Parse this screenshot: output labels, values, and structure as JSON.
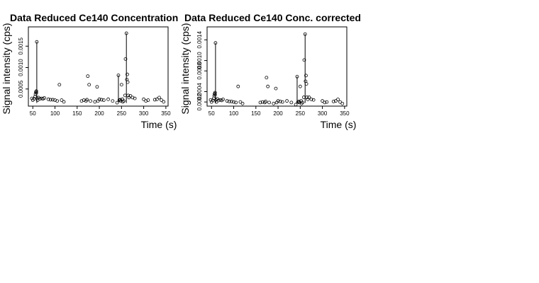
{
  "chart_data": [
    {
      "type": "scatter",
      "title": "Data Reduced Ce140 Concentration",
      "xlabel": "Time (s)",
      "ylabel": "Signal intensity (cps)",
      "xlim": [
        40,
        355
      ],
      "ylim": [
        0.0001,
        0.00195
      ],
      "x_ticks": [
        50,
        100,
        150,
        200,
        250,
        300,
        350
      ],
      "y_ticks": [
        0.0005,
        0.001,
        0.0015
      ],
      "y_tick_labels": [
        "0.0005",
        "0.0010",
        "0.0015"
      ],
      "grid": false,
      "points": [
        {
          "x": 48,
          "y": 0.00028
        },
        {
          "x": 50,
          "y": 0.00024
        },
        {
          "x": 53,
          "y": 0.00027
        },
        {
          "x": 55,
          "y": 0.00032
        },
        {
          "x": 56,
          "y": 0.00038
        },
        {
          "x": 57,
          "y": 0.00043
        },
        {
          "x": 58,
          "y": 0.00045
        },
        {
          "x": 58,
          "y": 0.00041
        },
        {
          "x": 59,
          "y": 0.0016
        },
        {
          "x": 60,
          "y": 0.00028
        },
        {
          "x": 61,
          "y": 0.00024
        },
        {
          "x": 63,
          "y": 0.0003
        },
        {
          "x": 66,
          "y": 0.00027
        },
        {
          "x": 70,
          "y": 0.00028
        },
        {
          "x": 73,
          "y": 0.00027
        },
        {
          "x": 76,
          "y": 0.00029
        },
        {
          "x": 85,
          "y": 0.00026
        },
        {
          "x": 90,
          "y": 0.00025
        },
        {
          "x": 95,
          "y": 0.00025
        },
        {
          "x": 100,
          "y": 0.00024
        },
        {
          "x": 105,
          "y": 0.00022
        },
        {
          "x": 110,
          "y": 0.0006
        },
        {
          "x": 115,
          "y": 0.00024
        },
        {
          "x": 120,
          "y": 0.0002
        },
        {
          "x": 160,
          "y": 0.00022
        },
        {
          "x": 165,
          "y": 0.00024
        },
        {
          "x": 170,
          "y": 0.00022
        },
        {
          "x": 172,
          "y": 0.00025
        },
        {
          "x": 174,
          "y": 0.0008
        },
        {
          "x": 177,
          "y": 0.0006
        },
        {
          "x": 180,
          "y": 0.00022
        },
        {
          "x": 190,
          "y": 0.0002
        },
        {
          "x": 195,
          "y": 0.00055
        },
        {
          "x": 197,
          "y": 0.00022
        },
        {
          "x": 200,
          "y": 0.00026
        },
        {
          "x": 205,
          "y": 0.00025
        },
        {
          "x": 210,
          "y": 0.00024
        },
        {
          "x": 220,
          "y": 0.00026
        },
        {
          "x": 230,
          "y": 0.00022
        },
        {
          "x": 240,
          "y": 0.00018
        },
        {
          "x": 243,
          "y": 0.00082
        },
        {
          "x": 245,
          "y": 0.00024
        },
        {
          "x": 247,
          "y": 0.00025
        },
        {
          "x": 248,
          "y": 0.00022
        },
        {
          "x": 250,
          "y": 0.0006
        },
        {
          "x": 252,
          "y": 0.00026
        },
        {
          "x": 253,
          "y": 0.0002
        },
        {
          "x": 255,
          "y": 0.00022
        },
        {
          "x": 258,
          "y": 0.00035
        },
        {
          "x": 259,
          "y": 0.0012
        },
        {
          "x": 261,
          "y": 0.0018
        },
        {
          "x": 262,
          "y": 0.00072
        },
        {
          "x": 263,
          "y": 0.00084
        },
        {
          "x": 264,
          "y": 0.00066
        },
        {
          "x": 265,
          "y": 0.00035
        },
        {
          "x": 267,
          "y": 0.0003
        },
        {
          "x": 270,
          "y": 0.00034
        },
        {
          "x": 275,
          "y": 0.0003
        },
        {
          "x": 280,
          "y": 0.00028
        },
        {
          "x": 300,
          "y": 0.00026
        },
        {
          "x": 305,
          "y": 0.00022
        },
        {
          "x": 310,
          "y": 0.00024
        },
        {
          "x": 325,
          "y": 0.00025
        },
        {
          "x": 330,
          "y": 0.00026
        },
        {
          "x": 335,
          "y": 0.0003
        },
        {
          "x": 340,
          "y": 0.00024
        },
        {
          "x": 345,
          "y": 0.0002
        }
      ],
      "spikes": [
        {
          "x": 59,
          "y": 0.0016
        },
        {
          "x": 243,
          "y": 0.00082
        },
        {
          "x": 261,
          "y": 0.0018
        }
      ]
    },
    {
      "type": "scatter",
      "title": "Data Reduced Ce140 Conc. corrected",
      "xlabel": "Time (s)",
      "ylabel": "Signal intensity (cps)",
      "xlim": [
        40,
        355
      ],
      "ylim": [
        0.00012,
        0.00165
      ],
      "x_ticks": [
        50,
        100,
        150,
        200,
        250,
        300,
        350
      ],
      "y_ticks": [
        0.0002,
        0.0004,
        0.0008,
        0.001,
        0.0014
      ],
      "y_tick_labels": [
        "0.0002",
        "0.0004",
        "0.0008",
        "0.0010",
        "0.0014"
      ],
      "grid": false,
      "points": [
        {
          "x": 48,
          "y": 0.00024
        },
        {
          "x": 50,
          "y": 0.0002
        },
        {
          "x": 53,
          "y": 0.00023
        },
        {
          "x": 55,
          "y": 0.00027
        },
        {
          "x": 56,
          "y": 0.00032
        },
        {
          "x": 57,
          "y": 0.00036
        },
        {
          "x": 58,
          "y": 0.00038
        },
        {
          "x": 58,
          "y": 0.00034
        },
        {
          "x": 59,
          "y": 0.00134
        },
        {
          "x": 60,
          "y": 0.00024
        },
        {
          "x": 61,
          "y": 0.0002
        },
        {
          "x": 63,
          "y": 0.00026
        },
        {
          "x": 66,
          "y": 0.00023
        },
        {
          "x": 70,
          "y": 0.00024
        },
        {
          "x": 73,
          "y": 0.00023
        },
        {
          "x": 76,
          "y": 0.00025
        },
        {
          "x": 85,
          "y": 0.00022
        },
        {
          "x": 90,
          "y": 0.00021
        },
        {
          "x": 95,
          "y": 0.00021
        },
        {
          "x": 100,
          "y": 0.0002
        },
        {
          "x": 105,
          "y": 0.00019
        },
        {
          "x": 110,
          "y": 0.0005
        },
        {
          "x": 115,
          "y": 0.0002
        },
        {
          "x": 120,
          "y": 0.00017
        },
        {
          "x": 160,
          "y": 0.00019
        },
        {
          "x": 165,
          "y": 0.0002
        },
        {
          "x": 170,
          "y": 0.00019
        },
        {
          "x": 172,
          "y": 0.00021
        },
        {
          "x": 174,
          "y": 0.00067
        },
        {
          "x": 177,
          "y": 0.0005
        },
        {
          "x": 180,
          "y": 0.00019
        },
        {
          "x": 190,
          "y": 0.00017
        },
        {
          "x": 195,
          "y": 0.00046
        },
        {
          "x": 197,
          "y": 0.00019
        },
        {
          "x": 200,
          "y": 0.00022
        },
        {
          "x": 205,
          "y": 0.00021
        },
        {
          "x": 210,
          "y": 0.0002
        },
        {
          "x": 220,
          "y": 0.00022
        },
        {
          "x": 230,
          "y": 0.00019
        },
        {
          "x": 240,
          "y": 0.00015
        },
        {
          "x": 243,
          "y": 0.00069
        },
        {
          "x": 245,
          "y": 0.0002
        },
        {
          "x": 247,
          "y": 0.00021
        },
        {
          "x": 248,
          "y": 0.00019
        },
        {
          "x": 250,
          "y": 0.0005
        },
        {
          "x": 252,
          "y": 0.00022
        },
        {
          "x": 253,
          "y": 0.00017
        },
        {
          "x": 255,
          "y": 0.00019
        },
        {
          "x": 258,
          "y": 0.00029
        },
        {
          "x": 259,
          "y": 0.00101
        },
        {
          "x": 261,
          "y": 0.00151
        },
        {
          "x": 262,
          "y": 0.0006
        },
        {
          "x": 263,
          "y": 0.00071
        },
        {
          "x": 264,
          "y": 0.00055
        },
        {
          "x": 265,
          "y": 0.00029
        },
        {
          "x": 267,
          "y": 0.00025
        },
        {
          "x": 270,
          "y": 0.00029
        },
        {
          "x": 275,
          "y": 0.00025
        },
        {
          "x": 280,
          "y": 0.00024
        },
        {
          "x": 300,
          "y": 0.00022
        },
        {
          "x": 305,
          "y": 0.00019
        },
        {
          "x": 310,
          "y": 0.0002
        },
        {
          "x": 325,
          "y": 0.00021
        },
        {
          "x": 330,
          "y": 0.00022
        },
        {
          "x": 335,
          "y": 0.00025
        },
        {
          "x": 340,
          "y": 0.0002
        },
        {
          "x": 345,
          "y": 0.00017
        }
      ],
      "spikes": [
        {
          "x": 59,
          "y": 0.00134
        },
        {
          "x": 243,
          "y": 0.00069
        },
        {
          "x": 261,
          "y": 0.00151
        }
      ]
    }
  ]
}
